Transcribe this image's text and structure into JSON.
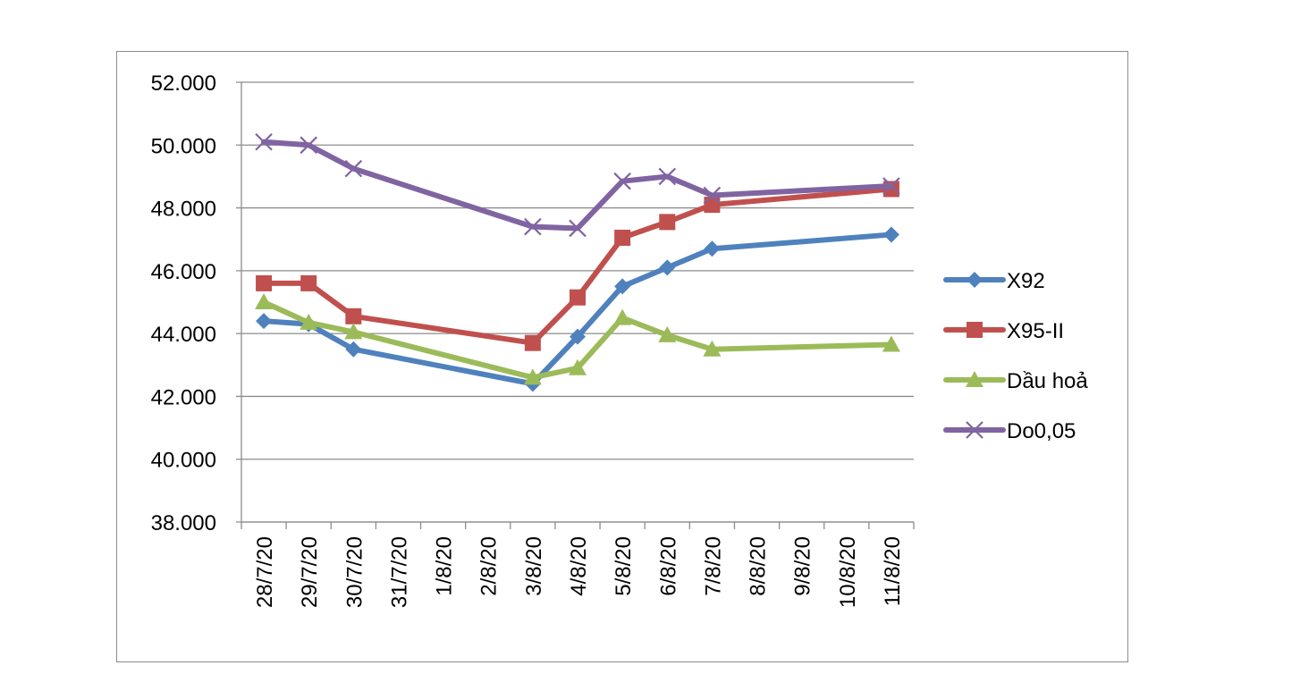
{
  "chart_data": {
    "type": "line",
    "categories": [
      "28/7/20",
      "29/7/20",
      "30/7/20",
      "31/7/20",
      "1/8/20",
      "2/8/20",
      "3/8/20",
      "4/8/20",
      "5/8/20",
      "6/8/20",
      "7/8/20",
      "8/8/20",
      "9/8/20",
      "10/8/20",
      "11/8/20"
    ],
    "y_ticks": [
      "38.000",
      "40.000",
      "42.000",
      "44.000",
      "46.000",
      "48.000",
      "50.000",
      "52.000"
    ],
    "ylim": [
      38000,
      52000
    ],
    "grid": true,
    "legend_position": "right",
    "series": [
      {
        "name": "X92",
        "color": "#4f81bd",
        "marker": "diamond",
        "points": [
          [
            "28/7/20",
            44400
          ],
          [
            "29/7/20",
            44300
          ],
          [
            "30/7/20",
            43500
          ],
          [
            "3/8/20",
            42400
          ],
          [
            "4/8/20",
            43900
          ],
          [
            "5/8/20",
            45500
          ],
          [
            "6/8/20",
            46100
          ],
          [
            "7/8/20",
            46700
          ],
          [
            "11/8/20",
            47150
          ]
        ]
      },
      {
        "name": "X95-II",
        "color": "#c0504d",
        "marker": "square",
        "points": [
          [
            "28/7/20",
            45600
          ],
          [
            "29/7/20",
            45600
          ],
          [
            "30/7/20",
            44550
          ],
          [
            "3/8/20",
            43700
          ],
          [
            "4/8/20",
            45150
          ],
          [
            "5/8/20",
            47050
          ],
          [
            "6/8/20",
            47550
          ],
          [
            "7/8/20",
            48100
          ],
          [
            "11/8/20",
            48600
          ]
        ]
      },
      {
        "name": "Dầu hoả",
        "color": "#9bbb59",
        "marker": "triangle",
        "points": [
          [
            "28/7/20",
            45000
          ],
          [
            "29/7/20",
            44350
          ],
          [
            "30/7/20",
            44050
          ],
          [
            "3/8/20",
            42600
          ],
          [
            "4/8/20",
            42900
          ],
          [
            "5/8/20",
            44500
          ],
          [
            "6/8/20",
            43950
          ],
          [
            "7/8/20",
            43500
          ],
          [
            "11/8/20",
            43650
          ]
        ]
      },
      {
        "name": "Do0,05",
        "color": "#8064a2",
        "marker": "x",
        "points": [
          [
            "28/7/20",
            50100
          ],
          [
            "29/7/20",
            50000
          ],
          [
            "30/7/20",
            49250
          ],
          [
            "3/8/20",
            47400
          ],
          [
            "4/8/20",
            47350
          ],
          [
            "5/8/20",
            48850
          ],
          [
            "6/8/20",
            49000
          ],
          [
            "7/8/20",
            48400
          ],
          [
            "11/8/20",
            48700
          ]
        ]
      }
    ]
  }
}
